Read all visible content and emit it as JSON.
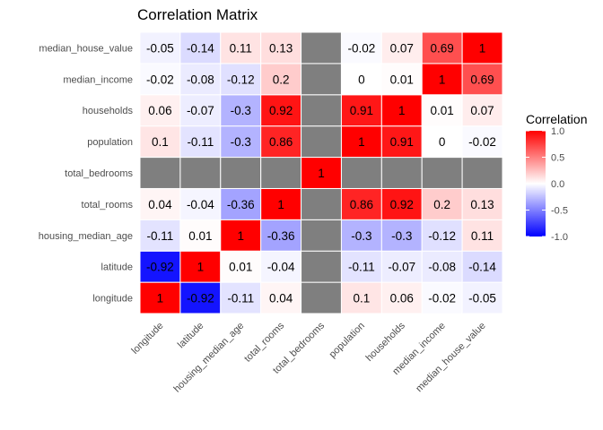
{
  "chart_data": {
    "type": "heatmap",
    "title": "Correlation Matrix",
    "xlabel": "",
    "ylabel": "",
    "variables": [
      "longitude",
      "latitude",
      "housing_median_age",
      "total_rooms",
      "total_bedrooms",
      "population",
      "households",
      "median_income",
      "median_house_value"
    ],
    "matrix": [
      [
        1,
        -0.92,
        -0.11,
        0.04,
        null,
        0.1,
        0.06,
        -0.02,
        -0.05
      ],
      [
        -0.92,
        1,
        0.01,
        -0.04,
        null,
        -0.11,
        -0.07,
        -0.08,
        -0.14
      ],
      [
        -0.11,
        0.01,
        1,
        -0.36,
        null,
        -0.3,
        -0.3,
        -0.12,
        0.11
      ],
      [
        0.04,
        -0.04,
        -0.36,
        1,
        null,
        0.86,
        0.92,
        0.2,
        0.13
      ],
      [
        null,
        null,
        null,
        null,
        1,
        null,
        null,
        null,
        null
      ],
      [
        0.1,
        -0.11,
        -0.3,
        0.86,
        null,
        1,
        0.91,
        0,
        -0.02
      ],
      [
        0.06,
        -0.07,
        -0.3,
        0.92,
        null,
        0.91,
        1,
        0.01,
        0.07
      ],
      [
        -0.02,
        -0.08,
        -0.12,
        0.2,
        null,
        0,
        0.01,
        1,
        0.69
      ],
      [
        -0.05,
        -0.14,
        0.11,
        0.13,
        null,
        -0.02,
        0.07,
        0.69,
        1
      ]
    ],
    "color_scale": {
      "low": "#0000ff",
      "mid": "#ffffff",
      "high": "#ff0000",
      "na": "#7f7f7f",
      "limits": [
        -1,
        1
      ]
    },
    "legend": {
      "title": "Correlation",
      "position": "right",
      "ticks": [
        1.0,
        0.5,
        0.0,
        -0.5,
        -1.0
      ],
      "tick_labels": [
        "1.0",
        "0.5",
        "0.0",
        "-0.5",
        "-1.0"
      ]
    }
  }
}
